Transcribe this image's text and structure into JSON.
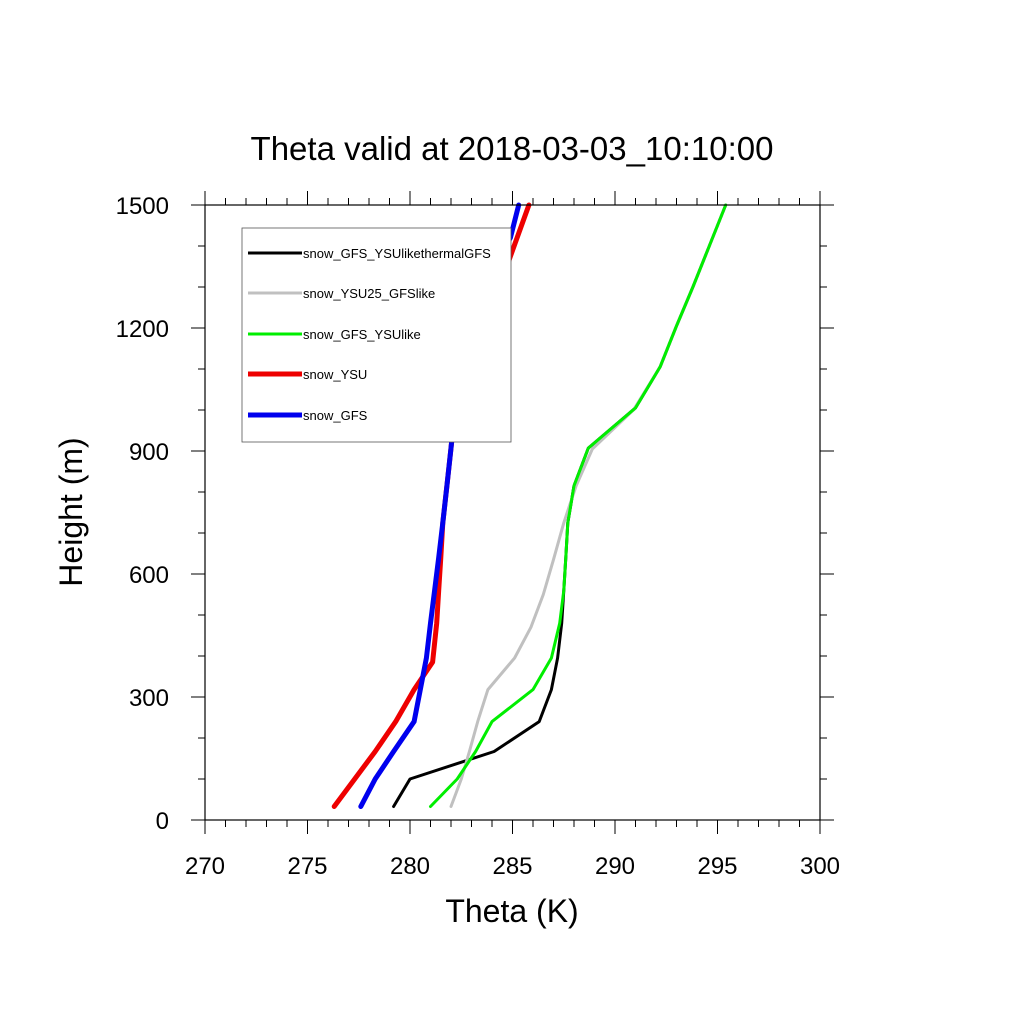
{
  "chart_data": {
    "type": "line",
    "title": "Theta valid at 2018-03-03_10:10:00",
    "xlabel": "Theta (K)",
    "ylabel": "Height (m)",
    "xlim": [
      270,
      300
    ],
    "ylim": [
      0,
      1500
    ],
    "xticks": [
      270,
      275,
      280,
      285,
      290,
      295,
      300
    ],
    "yticks": [
      0,
      300,
      600,
      900,
      1200,
      1500
    ],
    "grid": false,
    "legend_position": "top-left",
    "series": [
      {
        "name": "snow_GFS_YSUlikethermalGFS",
        "color": "#000000",
        "width": 3,
        "points": [
          [
            279.2,
            33
          ],
          [
            280.0,
            100
          ],
          [
            284.1,
            167
          ],
          [
            286.3,
            240
          ],
          [
            286.9,
            318
          ],
          [
            287.2,
            395
          ],
          [
            287.4,
            480
          ],
          [
            287.5,
            560
          ],
          [
            287.6,
            640
          ],
          [
            287.7,
            725
          ],
          [
            288.0,
            815
          ],
          [
            288.7,
            907
          ],
          [
            291.0,
            1005
          ],
          [
            292.2,
            1105
          ],
          [
            293.0,
            1205
          ],
          [
            293.8,
            1300
          ],
          [
            294.6,
            1400
          ],
          [
            295.4,
            1500
          ]
        ]
      },
      {
        "name": "snow_YSU25_GFSlike",
        "color": "#c0c0c0",
        "width": 3,
        "points": [
          [
            282.0,
            33
          ],
          [
            282.5,
            100
          ],
          [
            282.9,
            167
          ],
          [
            283.3,
            240
          ],
          [
            283.8,
            318
          ],
          [
            285.1,
            395
          ],
          [
            285.9,
            470
          ],
          [
            286.5,
            550
          ],
          [
            287.0,
            635
          ],
          [
            287.5,
            725
          ],
          [
            288.1,
            815
          ],
          [
            288.9,
            905
          ],
          [
            290.9,
            1000
          ],
          [
            292.2,
            1105
          ],
          [
            293.0,
            1205
          ],
          [
            293.8,
            1300
          ],
          [
            294.6,
            1400
          ],
          [
            295.4,
            1500
          ]
        ]
      },
      {
        "name": "snow_GFS_YSUlike",
        "color": "#00ee00",
        "width": 3,
        "points": [
          [
            281.0,
            33
          ],
          [
            282.3,
            100
          ],
          [
            283.2,
            167
          ],
          [
            284.0,
            240
          ],
          [
            286.0,
            318
          ],
          [
            286.9,
            395
          ],
          [
            287.3,
            480
          ],
          [
            287.5,
            560
          ],
          [
            287.6,
            640
          ],
          [
            287.7,
            725
          ],
          [
            288.0,
            815
          ],
          [
            288.7,
            907
          ],
          [
            291.0,
            1005
          ],
          [
            292.2,
            1105
          ],
          [
            293.0,
            1205
          ],
          [
            293.8,
            1300
          ],
          [
            294.6,
            1400
          ],
          [
            295.4,
            1500
          ]
        ]
      },
      {
        "name": "snow_YSU",
        "color": "#ee0000",
        "width": 5,
        "points": [
          [
            276.3,
            33
          ],
          [
            277.3,
            100
          ],
          [
            278.3,
            167
          ],
          [
            279.3,
            240
          ],
          [
            280.2,
            318
          ],
          [
            281.1,
            385
          ],
          [
            281.3,
            480
          ],
          [
            281.4,
            560
          ],
          [
            281.5,
            640
          ],
          [
            281.6,
            725
          ],
          [
            281.8,
            815
          ],
          [
            282.0,
            907
          ],
          [
            282.2,
            1005
          ],
          [
            282.5,
            1085
          ],
          [
            283.3,
            1200
          ],
          [
            284.5,
            1320
          ],
          [
            285.8,
            1500
          ]
        ]
      },
      {
        "name": "snow_GFS",
        "color": "#0000ee",
        "width": 5,
        "points": [
          [
            277.6,
            33
          ],
          [
            278.3,
            100
          ],
          [
            279.2,
            167
          ],
          [
            280.2,
            240
          ],
          [
            280.5,
            318
          ],
          [
            280.8,
            395
          ],
          [
            281.0,
            480
          ],
          [
            281.2,
            560
          ],
          [
            281.4,
            640
          ],
          [
            281.6,
            725
          ],
          [
            281.8,
            815
          ],
          [
            282.0,
            907
          ],
          [
            282.2,
            1005
          ],
          [
            282.5,
            1085
          ],
          [
            282.9,
            1200
          ],
          [
            283.4,
            1300
          ],
          [
            284.9,
            1420
          ],
          [
            285.3,
            1500
          ]
        ]
      }
    ]
  }
}
